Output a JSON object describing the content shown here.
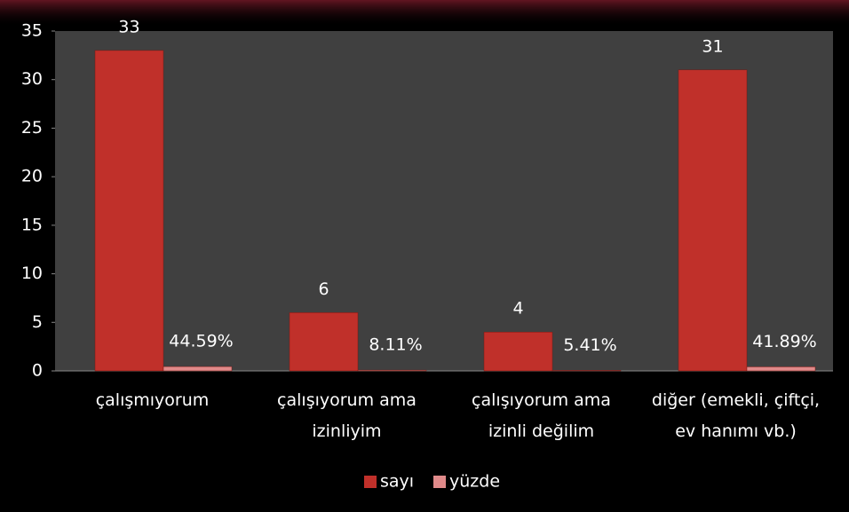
{
  "chart_data": {
    "type": "bar",
    "categories": [
      "çalışmıyorum",
      "çalışıyorum ama izinliyim",
      "çalışıyorum ama izinli değilim",
      "diğer (emekli, çiftçi, ev hanımı vb.)"
    ],
    "series": [
      {
        "name": "sayı",
        "color": "#c0302a",
        "values": [
          33,
          6,
          4,
          31
        ]
      },
      {
        "name": "yüzde",
        "color": "#e08a8a",
        "values": [
          0.4459,
          0.0811,
          0.0541,
          0.4189
        ],
        "value_labels": [
          "44.59%",
          "8.11%",
          "5.41%",
          "41.89%"
        ]
      }
    ],
    "ylim": [
      0,
      35
    ],
    "yticks": [
      0,
      5,
      10,
      15,
      20,
      25,
      30,
      35
    ],
    "legend": "bottom"
  }
}
